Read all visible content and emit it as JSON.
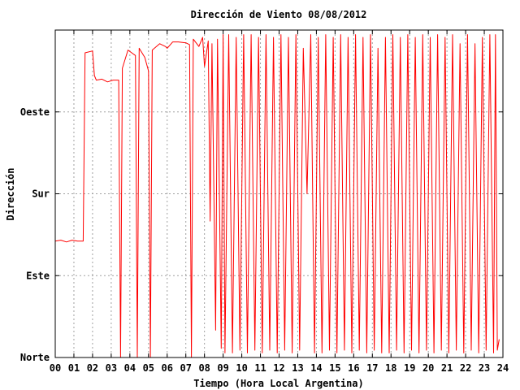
{
  "chart_data": {
    "type": "line",
    "title": "Dirección de Viento 08/08/2012",
    "xlabel": "Tiempo (Hora Local Argentina)",
    "ylabel": "Dirección",
    "xlim": [
      0,
      24
    ],
    "ylim": [
      0,
      360
    ],
    "x_ticks": [
      0,
      1,
      2,
      3,
      4,
      5,
      6,
      7,
      8,
      9,
      10,
      11,
      12,
      13,
      14,
      15,
      16,
      17,
      18,
      19,
      20,
      21,
      22,
      23,
      24
    ],
    "x_tick_labels": [
      "00",
      "01",
      "02",
      "03",
      "04",
      "05",
      "06",
      "07",
      "08",
      "09",
      "10",
      "11",
      "12",
      "13",
      "14",
      "15",
      "16",
      "17",
      "18",
      "19",
      "20",
      "21",
      "22",
      "23",
      "24"
    ],
    "y_ticks": [
      0,
      90,
      180,
      270
    ],
    "y_tick_labels": [
      "Norte",
      "Este",
      "Sur",
      "Oeste"
    ],
    "grid": true,
    "series": [
      {
        "color": "#ff0000",
        "points": [
          [
            0.0,
            128
          ],
          [
            0.3,
            129
          ],
          [
            0.6,
            127
          ],
          [
            0.9,
            129
          ],
          [
            1.2,
            128
          ],
          [
            1.5,
            128
          ],
          [
            1.6,
            335
          ],
          [
            2.0,
            337
          ],
          [
            2.1,
            310
          ],
          [
            2.2,
            305
          ],
          [
            2.5,
            306
          ],
          [
            2.8,
            303
          ],
          [
            3.1,
            305
          ],
          [
            3.4,
            305
          ],
          [
            3.5,
            0
          ],
          [
            3.6,
            318
          ],
          [
            3.9,
            338
          ],
          [
            4.1,
            335
          ],
          [
            4.3,
            332
          ],
          [
            4.4,
            0
          ],
          [
            4.5,
            340
          ],
          [
            4.8,
            330
          ],
          [
            5.0,
            315
          ],
          [
            5.1,
            0
          ],
          [
            5.2,
            338
          ],
          [
            5.6,
            345
          ],
          [
            5.9,
            342
          ],
          [
            6.0,
            340
          ],
          [
            6.3,
            347
          ],
          [
            6.6,
            347
          ],
          [
            7.0,
            346
          ],
          [
            7.2,
            344
          ],
          [
            7.3,
            0
          ],
          [
            7.4,
            350
          ],
          [
            7.7,
            342
          ],
          [
            7.9,
            352
          ],
          [
            8.0,
            320
          ],
          [
            8.2,
            348
          ],
          [
            8.3,
            150
          ],
          [
            8.4,
            345
          ],
          [
            8.6,
            30
          ],
          [
            8.7,
            350
          ],
          [
            8.9,
            10
          ],
          [
            9.0,
            355
          ],
          [
            9.1,
            5
          ],
          [
            9.3,
            355
          ],
          [
            9.5,
            5
          ],
          [
            9.7,
            352
          ],
          [
            9.9,
            8
          ],
          [
            10.1,
            355
          ],
          [
            10.3,
            5
          ],
          [
            10.5,
            355
          ],
          [
            10.7,
            8
          ],
          [
            10.9,
            352
          ],
          [
            11.1,
            5
          ],
          [
            11.3,
            355
          ],
          [
            11.5,
            8
          ],
          [
            11.7,
            352
          ],
          [
            11.9,
            5
          ],
          [
            12.1,
            355
          ],
          [
            12.3,
            8
          ],
          [
            12.5,
            352
          ],
          [
            12.7,
            5
          ],
          [
            12.9,
            355
          ],
          [
            13.1,
            8
          ],
          [
            13.3,
            340
          ],
          [
            13.5,
            180
          ],
          [
            13.7,
            355
          ],
          [
            13.9,
            5
          ],
          [
            14.1,
            352
          ],
          [
            14.3,
            5
          ],
          [
            14.5,
            355
          ],
          [
            14.7,
            8
          ],
          [
            14.9,
            352
          ],
          [
            15.1,
            5
          ],
          [
            15.3,
            355
          ],
          [
            15.5,
            8
          ],
          [
            15.7,
            352
          ],
          [
            15.9,
            5
          ],
          [
            16.1,
            355
          ],
          [
            16.3,
            8
          ],
          [
            16.5,
            352
          ],
          [
            16.7,
            5
          ],
          [
            16.9,
            355
          ],
          [
            17.1,
            8
          ],
          [
            17.3,
            340
          ],
          [
            17.5,
            5
          ],
          [
            17.7,
            352
          ],
          [
            17.9,
            5
          ],
          [
            18.1,
            355
          ],
          [
            18.3,
            8
          ],
          [
            18.5,
            352
          ],
          [
            18.7,
            5
          ],
          [
            18.9,
            355
          ],
          [
            19.1,
            8
          ],
          [
            19.3,
            352
          ],
          [
            19.5,
            5
          ],
          [
            19.7,
            355
          ],
          [
            19.9,
            8
          ],
          [
            20.1,
            352
          ],
          [
            20.3,
            5
          ],
          [
            20.5,
            355
          ],
          [
            20.7,
            8
          ],
          [
            20.9,
            352
          ],
          [
            21.1,
            5
          ],
          [
            21.3,
            355
          ],
          [
            21.5,
            8
          ],
          [
            21.7,
            345
          ],
          [
            21.9,
            5
          ],
          [
            22.1,
            355
          ],
          [
            22.3,
            8
          ],
          [
            22.5,
            345
          ],
          [
            22.7,
            5
          ],
          [
            22.9,
            352
          ],
          [
            23.1,
            8
          ],
          [
            23.3,
            355
          ],
          [
            23.5,
            5
          ],
          [
            23.6,
            355
          ],
          [
            23.7,
            8
          ],
          [
            23.8,
            20
          ]
        ]
      }
    ]
  }
}
